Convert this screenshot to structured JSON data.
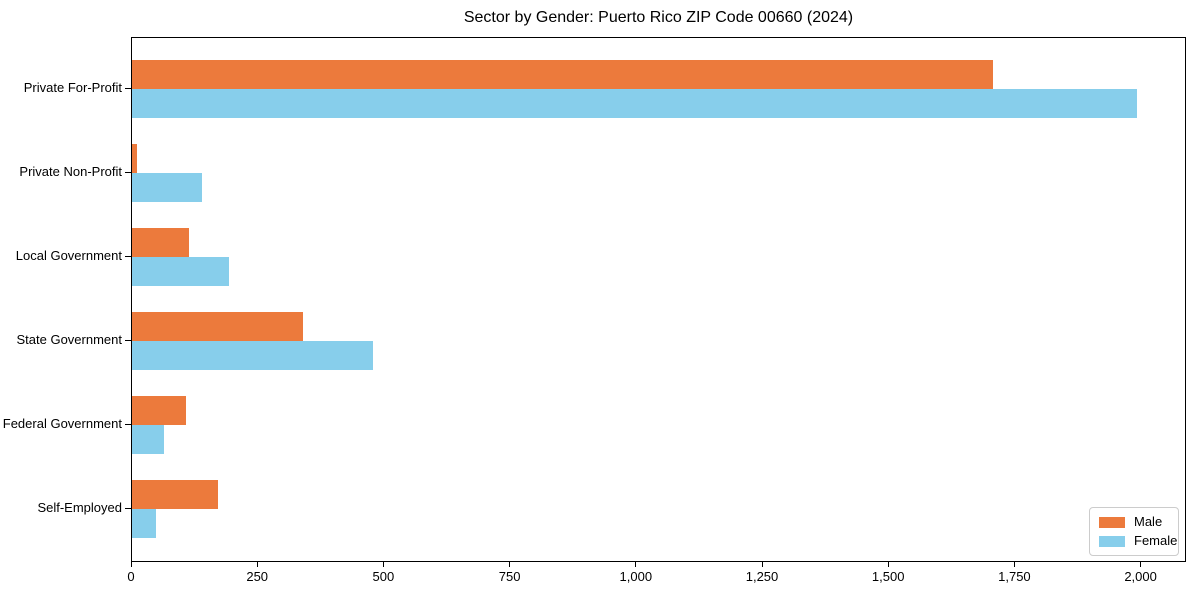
{
  "chart_data": {
    "type": "bar",
    "orientation": "horizontal",
    "title": "Sector by Gender: Puerto Rico ZIP Code 00660 (2024)",
    "categories": [
      "Private For-Profit",
      "Private Non-Profit",
      "Local Government",
      "State Government",
      "Federal Government",
      "Self-Employed"
    ],
    "series": [
      {
        "name": "Male",
        "color": "#ec7a3c",
        "values": [
          1705,
          10,
          113,
          339,
          107,
          170
        ]
      },
      {
        "name": "Female",
        "color": "#87ceeb",
        "values": [
          1990,
          139,
          192,
          478,
          64,
          48
        ]
      }
    ],
    "xlabel": "",
    "ylabel": "",
    "xlim": [
      0,
      2090
    ],
    "xticks": {
      "values": [
        0,
        250,
        500,
        750,
        1000,
        1250,
        1500,
        1750,
        2000
      ],
      "labels": [
        "0",
        "250",
        "500",
        "750",
        "1,000",
        "1,250",
        "1,500",
        "1,750",
        "2,000"
      ]
    },
    "grid": false,
    "legend": {
      "position": "lower right",
      "entries": [
        "Male",
        "Female"
      ]
    }
  }
}
